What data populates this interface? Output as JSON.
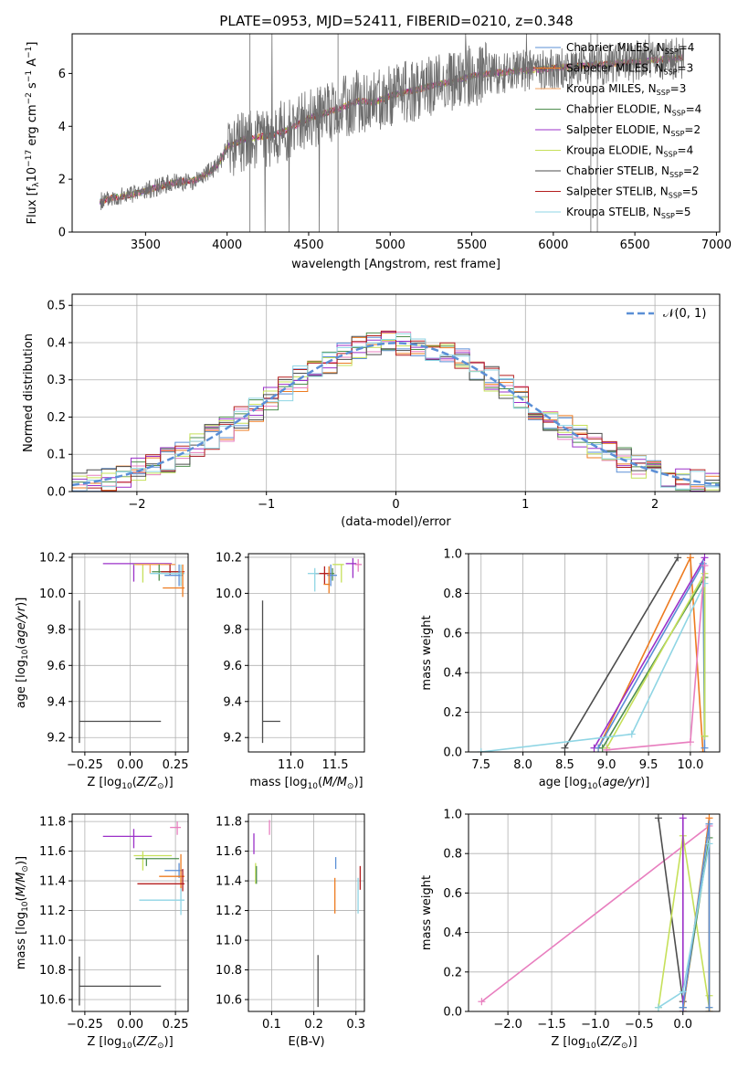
{
  "figure": {
    "title": "PLATE=0953, MJD=52411, FIBERID=0210, z=0.348"
  },
  "colors": {
    "chabrier_miles": "#5b8fd6",
    "salpeter_miles": "#ed7b20",
    "kroupa_miles": "#f3a15f",
    "chabrier_elodie": "#4f8f4f",
    "salpeter_elodie": "#9b30c8",
    "kroupa_elodie": "#c6e05a",
    "chabrier_stelib": "#4d4d4d",
    "salpeter_stelib": "#b51f1f",
    "kroupa_stelib": "#8fd5e4",
    "normal_curve": "#5b8fd6",
    "pink": "#e87fbf",
    "grid": "#b0b0b0"
  },
  "chart_data": [
    {
      "id": "spectrum",
      "type": "line",
      "xlabel": "wavelength [Angstrom, rest frame]",
      "ylabel": "Flux [f_λ 10^-17 erg cm^-2 s^-1 A^-1]",
      "xlim": [
        3050,
        7020
      ],
      "ylim": [
        0,
        7.5
      ],
      "xticks": [
        3500,
        4000,
        4500,
        5000,
        5500,
        6000,
        6500,
        7000
      ],
      "yticks": [
        0,
        2,
        4,
        6
      ],
      "grid": false,
      "legend_position": "top-right",
      "legend": [
        {
          "label": "Chabrier MILES, N_SSP=4",
          "color_key": "chabrier_miles"
        },
        {
          "label": "Salpeter MILES, N_SSP=3",
          "color_key": "salpeter_miles"
        },
        {
          "label": "Kroupa MILES, N_SSP=3",
          "color_key": "kroupa_miles"
        },
        {
          "label": "Chabrier ELODIE, N_SSP=4",
          "color_key": "chabrier_elodie"
        },
        {
          "label": "Salpeter ELODIE, N_SSP=2",
          "color_key": "salpeter_elodie"
        },
        {
          "label": "Kroupa ELODIE, N_SSP=4",
          "color_key": "kroupa_elodie"
        },
        {
          "label": "Chabrier STELIB, N_SSP=2",
          "color_key": "chabrier_stelib"
        },
        {
          "label": "Salpeter STELIB, N_SSP=5",
          "color_key": "salpeter_stelib"
        },
        {
          "label": "Kroupa STELIB, N_SSP=5",
          "color_key": "kroupa_stelib"
        }
      ],
      "continuum": [
        [
          3220,
          1.15
        ],
        [
          3300,
          1.3
        ],
        [
          3400,
          1.4
        ],
        [
          3500,
          1.55
        ],
        [
          3600,
          1.75
        ],
        [
          3700,
          1.9
        ],
        [
          3800,
          1.95
        ],
        [
          3900,
          2.3
        ],
        [
          3950,
          2.6
        ],
        [
          4000,
          3.2
        ],
        [
          4100,
          3.5
        ],
        [
          4200,
          3.6
        ],
        [
          4300,
          3.7
        ],
        [
          4400,
          3.95
        ],
        [
          4500,
          4.3
        ],
        [
          4600,
          4.5
        ],
        [
          4700,
          4.7
        ],
        [
          4800,
          4.95
        ],
        [
          4900,
          4.9
        ],
        [
          5000,
          5.15
        ],
        [
          5100,
          5.3
        ],
        [
          5200,
          5.45
        ],
        [
          5300,
          5.6
        ],
        [
          5400,
          5.7
        ],
        [
          5500,
          5.9
        ],
        [
          5600,
          6.0
        ],
        [
          5700,
          6.05
        ],
        [
          5800,
          6.1
        ],
        [
          5900,
          6.15
        ],
        [
          6000,
          6.2
        ],
        [
          6200,
          6.3
        ],
        [
          6400,
          6.4
        ],
        [
          6600,
          6.5
        ],
        [
          6800,
          6.6
        ]
      ]
    },
    {
      "id": "residuals",
      "type": "histogram",
      "xlabel": "(data-model)/error",
      "ylabel": "Normed distribution",
      "xlim": [
        -2.5,
        2.5
      ],
      "ylim": [
        0,
        0.53
      ],
      "xticks": [
        -2,
        -1,
        0,
        1,
        2
      ],
      "yticks": [
        0.0,
        0.1,
        0.2,
        0.3,
        0.4,
        0.5
      ],
      "grid": true,
      "legend_position": "top-right",
      "legend": [
        {
          "label": "𝒩(0, 1)",
          "color_key": "normal_curve"
        }
      ],
      "bin_edges_range": [
        -2.5,
        2.5
      ],
      "bin_count": 44
    },
    {
      "id": "age_vs_Z",
      "type": "errorbar",
      "xlabel": "Z [log10(Z/Z⊙)]",
      "ylabel": "age [log10(age/yr)]",
      "xlim": [
        -0.32,
        0.32
      ],
      "ylim": [
        9.12,
        10.22
      ],
      "xticks": [
        -0.25,
        0.0,
        0.25
      ],
      "yticks": [
        9.2,
        9.4,
        9.6,
        9.8,
        10.0,
        10.2
      ],
      "grid": true,
      "points": [
        {
          "x": 0.02,
          "y": 10.165,
          "xerr": [
            0.17,
            0.21
          ],
          "yerr": [
            0.1,
            0.0
          ],
          "color_key": "salpeter_elodie"
        },
        {
          "x": 0.07,
          "y": 10.16,
          "xerr": [
            0.05,
            0.12
          ],
          "yerr": [
            0.1,
            0.0
          ],
          "color_key": "kroupa_elodie"
        },
        {
          "x": 0.11,
          "y": 10.16,
          "xerr": [
            0.08,
            0.14
          ],
          "yerr": [
            0.05,
            0.0
          ],
          "color_key": "kroupa_miles"
        },
        {
          "x": 0.16,
          "y": 10.12,
          "xerr": [
            0.04,
            0.12
          ],
          "yerr": [
            0.05,
            0.04
          ],
          "color_key": "chabrier_elodie"
        },
        {
          "x": 0.22,
          "y": 10.12,
          "xerr": [
            0.05,
            0.08
          ],
          "yerr": [
            0.02,
            0.04
          ],
          "color_key": "salpeter_stelib"
        },
        {
          "x": 0.27,
          "y": 10.1,
          "xerr": [
            0.08,
            0.02
          ],
          "yerr": [
            0.06,
            0.06
          ],
          "color_key": "chabrier_miles"
        },
        {
          "x": 0.28,
          "y": 10.11,
          "xerr": [
            0.17,
            0.02
          ],
          "yerr": [
            0.07,
            0.05
          ],
          "color_key": "kroupa_stelib"
        },
        {
          "x": 0.29,
          "y": 10.03,
          "xerr": [
            0.11,
            0.01
          ],
          "yerr": [
            0.05,
            0.13
          ],
          "color_key": "salpeter_miles"
        },
        {
          "x": -0.28,
          "y": 9.29,
          "xerr": [
            0.0,
            0.45
          ],
          "yerr": [
            0.12,
            0.67
          ],
          "color_key": "chabrier_stelib"
        }
      ]
    },
    {
      "id": "age_vs_mass",
      "type": "errorbar",
      "xlabel": "mass [log10(M/M⊙)]",
      "ylabel": "",
      "xlim": [
        10.52,
        11.83
      ],
      "ylim": [
        9.12,
        10.22
      ],
      "xticks": [
        11.0,
        11.5
      ],
      "yticks": [
        9.2,
        9.4,
        9.6,
        9.8,
        10.0,
        10.2
      ],
      "grid": true,
      "points": [
        {
          "x": 11.7,
          "y": 10.165,
          "xerr": [
            0.08,
            0.04
          ],
          "yerr": [
            0.08,
            0.03
          ],
          "color_key": "salpeter_elodie"
        },
        {
          "x": 11.57,
          "y": 10.16,
          "xerr": [
            0.1,
            0.03
          ],
          "yerr": [
            0.1,
            0.0
          ],
          "color_key": "kroupa_elodie"
        },
        {
          "x": 11.47,
          "y": 10.11,
          "xerr": [
            0.1,
            0.02
          ],
          "yerr": [
            0.04,
            0.03
          ],
          "color_key": "chabrier_elodie"
        },
        {
          "x": 11.38,
          "y": 10.11,
          "xerr": [
            0.1,
            0.07
          ],
          "yerr": [
            0.06,
            0.04
          ],
          "color_key": "salpeter_stelib"
        },
        {
          "x": 11.45,
          "y": 10.1,
          "xerr": [
            0.04,
            0.07
          ],
          "yerr": [
            0.06,
            0.06
          ],
          "color_key": "chabrier_miles"
        },
        {
          "x": 11.27,
          "y": 10.11,
          "xerr": [
            0.08,
            0.05
          ],
          "yerr": [
            0.1,
            0.03
          ],
          "color_key": "kroupa_stelib"
        },
        {
          "x": 11.43,
          "y": 10.05,
          "xerr": [
            0.06,
            0.01
          ],
          "yerr": [
            0.05,
            0.1
          ],
          "color_key": "salpeter_miles"
        },
        {
          "x": 11.76,
          "y": 10.16,
          "xerr": [
            0.04,
            0.04
          ],
          "yerr": [
            0.04,
            0.03
          ],
          "color_key": "pink"
        },
        {
          "x": 10.68,
          "y": 9.29,
          "xerr": [
            0.0,
            0.2
          ],
          "yerr": [
            0.12,
            0.67
          ],
          "color_key": "chabrier_stelib"
        }
      ]
    },
    {
      "id": "weight_vs_age",
      "type": "line",
      "xlabel": "age [log10(age/yr)]",
      "ylabel": "mass weight",
      "xlim": [
        7.35,
        10.35
      ],
      "ylim": [
        0,
        1
      ],
      "xticks": [
        7.5,
        8.0,
        8.5,
        9.0,
        9.5,
        10.0
      ],
      "yticks": [
        0.0,
        0.2,
        0.4,
        0.6,
        0.8,
        1.0
      ],
      "grid": true,
      "series": [
        {
          "color_key": "chabrier_stelib",
          "x": [
            8.5,
            9.85
          ],
          "y": [
            0.02,
            0.98
          ]
        },
        {
          "color_key": "salpeter_miles",
          "x": [
            8.9,
            10.0,
            10.15
          ],
          "y": [
            0.02,
            0.98,
            0.0
          ]
        },
        {
          "color_key": "salpeter_elodie",
          "x": [
            8.85,
            10.17
          ],
          "y": [
            0.02,
            0.98
          ]
        },
        {
          "color_key": "chabrier_miles",
          "x": [
            8.9,
            10.15,
            10.17
          ],
          "y": [
            0.02,
            0.95,
            0.02
          ]
        },
        {
          "color_key": "chabrier_elodie",
          "x": [
            8.95,
            10.17,
            10.17
          ],
          "y": [
            0.02,
            0.88,
            0.08
          ]
        },
        {
          "color_key": "kroupa_elodie",
          "x": [
            9.0,
            10.17,
            10.17
          ],
          "y": [
            0.02,
            0.9,
            0.08
          ]
        },
        {
          "color_key": "kroupa_stelib",
          "x": [
            7.5,
            9.3,
            10.17
          ],
          "y": [
            0.0,
            0.09,
            0.85
          ]
        },
        {
          "color_key": "pink",
          "x": [
            9.0,
            10.0,
            10.17
          ],
          "y": [
            0.01,
            0.05,
            0.94
          ]
        }
      ]
    },
    {
      "id": "mass_vs_Z",
      "type": "errorbar",
      "xlabel": "Z [log10(Z/Z⊙)]",
      "ylabel": "mass [log10(M/M⊙)]",
      "xlim": [
        -0.32,
        0.32
      ],
      "ylim": [
        10.52,
        11.85
      ],
      "xticks": [
        -0.25,
        0.0,
        0.25
      ],
      "yticks": [
        10.6,
        10.8,
        11.0,
        11.2,
        11.4,
        11.6,
        11.8
      ],
      "grid": true,
      "points": [
        {
          "x": 0.02,
          "y": 11.7,
          "xerr": [
            0.17,
            0.1
          ],
          "yerr": [
            0.08,
            0.05
          ],
          "color_key": "salpeter_elodie"
        },
        {
          "x": 0.07,
          "y": 11.57,
          "xerr": [
            0.05,
            0.16
          ],
          "yerr": [
            0.1,
            0.03
          ],
          "color_key": "kroupa_elodie"
        },
        {
          "x": 0.09,
          "y": 11.55,
          "xerr": [
            0.06,
            0.18
          ],
          "yerr": [
            0.05,
            0.0
          ],
          "color_key": "chabrier_elodie"
        },
        {
          "x": 0.27,
          "y": 11.47,
          "xerr": [
            0.08,
            0.02
          ],
          "yerr": [
            0.05,
            0.05
          ],
          "color_key": "chabrier_miles"
        },
        {
          "x": 0.28,
          "y": 11.43,
          "xerr": [
            0.12,
            0.02
          ],
          "yerr": [
            0.08,
            0.15
          ],
          "color_key": "salpeter_miles"
        },
        {
          "x": 0.29,
          "y": 11.38,
          "xerr": [
            0.25,
            0.01
          ],
          "yerr": [
            0.05,
            0.1
          ],
          "color_key": "salpeter_stelib"
        },
        {
          "x": 0.28,
          "y": 11.27,
          "xerr": [
            0.23,
            0.02
          ],
          "yerr": [
            0.1,
            0.08
          ],
          "color_key": "kroupa_stelib"
        },
        {
          "x": 0.26,
          "y": 11.76,
          "xerr": [
            0.04,
            0.02
          ],
          "yerr": [
            0.05,
            0.04
          ],
          "color_key": "pink"
        },
        {
          "x": -0.28,
          "y": 10.69,
          "xerr": [
            0.0,
            0.45
          ],
          "yerr": [
            0.13,
            0.2
          ],
          "color_key": "chabrier_stelib"
        }
      ]
    },
    {
      "id": "mass_vs_ebv",
      "type": "errorbar",
      "xlabel": "E(B-V)",
      "ylabel": "",
      "xlim": [
        0.045,
        0.32
      ],
      "ylim": [
        10.52,
        11.85
      ],
      "xticks": [
        0.1,
        0.2,
        0.3
      ],
      "yticks": [
        10.6,
        10.8,
        11.0,
        11.2,
        11.4,
        11.6,
        11.8
      ],
      "grid": true,
      "points": [
        {
          "x": 0.058,
          "y": 11.65,
          "xerr": [
            0,
            0
          ],
          "yerr": [
            0.07,
            0.07
          ],
          "color_key": "salpeter_elodie"
        },
        {
          "x": 0.062,
          "y": 11.45,
          "xerr": [
            0,
            0
          ],
          "yerr": [
            0.07,
            0.07
          ],
          "color_key": "kroupa_elodie"
        },
        {
          "x": 0.064,
          "y": 11.44,
          "xerr": [
            0,
            0
          ],
          "yerr": [
            0.06,
            0.06
          ],
          "color_key": "chabrier_elodie"
        },
        {
          "x": 0.095,
          "y": 11.76,
          "xerr": [
            0,
            0
          ],
          "yerr": [
            0.05,
            0.05
          ],
          "color_key": "pink"
        },
        {
          "x": 0.21,
          "y": 10.68,
          "xerr": [
            0,
            0
          ],
          "yerr": [
            0.13,
            0.22
          ],
          "color_key": "chabrier_stelib"
        },
        {
          "x": 0.25,
          "y": 11.3,
          "xerr": [
            0,
            0
          ],
          "yerr": [
            0.12,
            0.12
          ],
          "color_key": "salpeter_miles"
        },
        {
          "x": 0.252,
          "y": 11.52,
          "xerr": [
            0,
            0
          ],
          "yerr": [
            0.04,
            0.04
          ],
          "color_key": "chabrier_miles"
        },
        {
          "x": 0.305,
          "y": 11.3,
          "xerr": [
            0,
            0
          ],
          "yerr": [
            0.12,
            0.12
          ],
          "color_key": "kroupa_stelib"
        },
        {
          "x": 0.31,
          "y": 11.42,
          "xerr": [
            0,
            0
          ],
          "yerr": [
            0.08,
            0.08
          ],
          "color_key": "salpeter_stelib"
        }
      ]
    },
    {
      "id": "weight_vs_Z",
      "type": "line",
      "xlabel": "Z [log10(Z/Z⊙)]",
      "ylabel": "mass weight",
      "xlim": [
        -2.45,
        0.42
      ],
      "ylim": [
        0,
        1
      ],
      "xticks": [
        -2.0,
        -1.5,
        -1.0,
        -0.5,
        0.0
      ],
      "yticks": [
        0.0,
        0.2,
        0.4,
        0.6,
        0.8,
        1.0
      ],
      "grid": true,
      "series": [
        {
          "color_key": "pink",
          "x": [
            -2.3,
            0.3
          ],
          "y": [
            0.05,
            0.94
          ]
        },
        {
          "color_key": "chabrier_stelib",
          "x": [
            -0.28,
            0.0,
            0.0
          ],
          "y": [
            0.98,
            0.05,
            0.0
          ]
        },
        {
          "color_key": "kroupa_elodie",
          "x": [
            -0.28,
            0.0,
            0.3,
            0.3
          ],
          "y": [
            0.02,
            0.89,
            0.02,
            0.08
          ]
        },
        {
          "color_key": "chabrier_elodie",
          "x": [
            0.0,
            0.3,
            0.3
          ],
          "y": [
            0.02,
            0.88,
            0.0
          ]
        },
        {
          "color_key": "salpeter_miles",
          "x": [
            0.0,
            0.3,
            0.3
          ],
          "y": [
            0.0,
            0.98,
            0.0
          ]
        },
        {
          "color_key": "salpeter_elodie",
          "x": [
            0.0,
            0.0
          ],
          "y": [
            0.0,
            0.98
          ]
        },
        {
          "color_key": "chabrier_miles",
          "x": [
            0.0,
            0.3,
            0.3
          ],
          "y": [
            0.02,
            0.95,
            0.02
          ]
        },
        {
          "color_key": "kroupa_stelib",
          "x": [
            -0.28,
            0.0,
            0.3
          ],
          "y": [
            0.02,
            0.1,
            0.85
          ]
        }
      ]
    }
  ]
}
